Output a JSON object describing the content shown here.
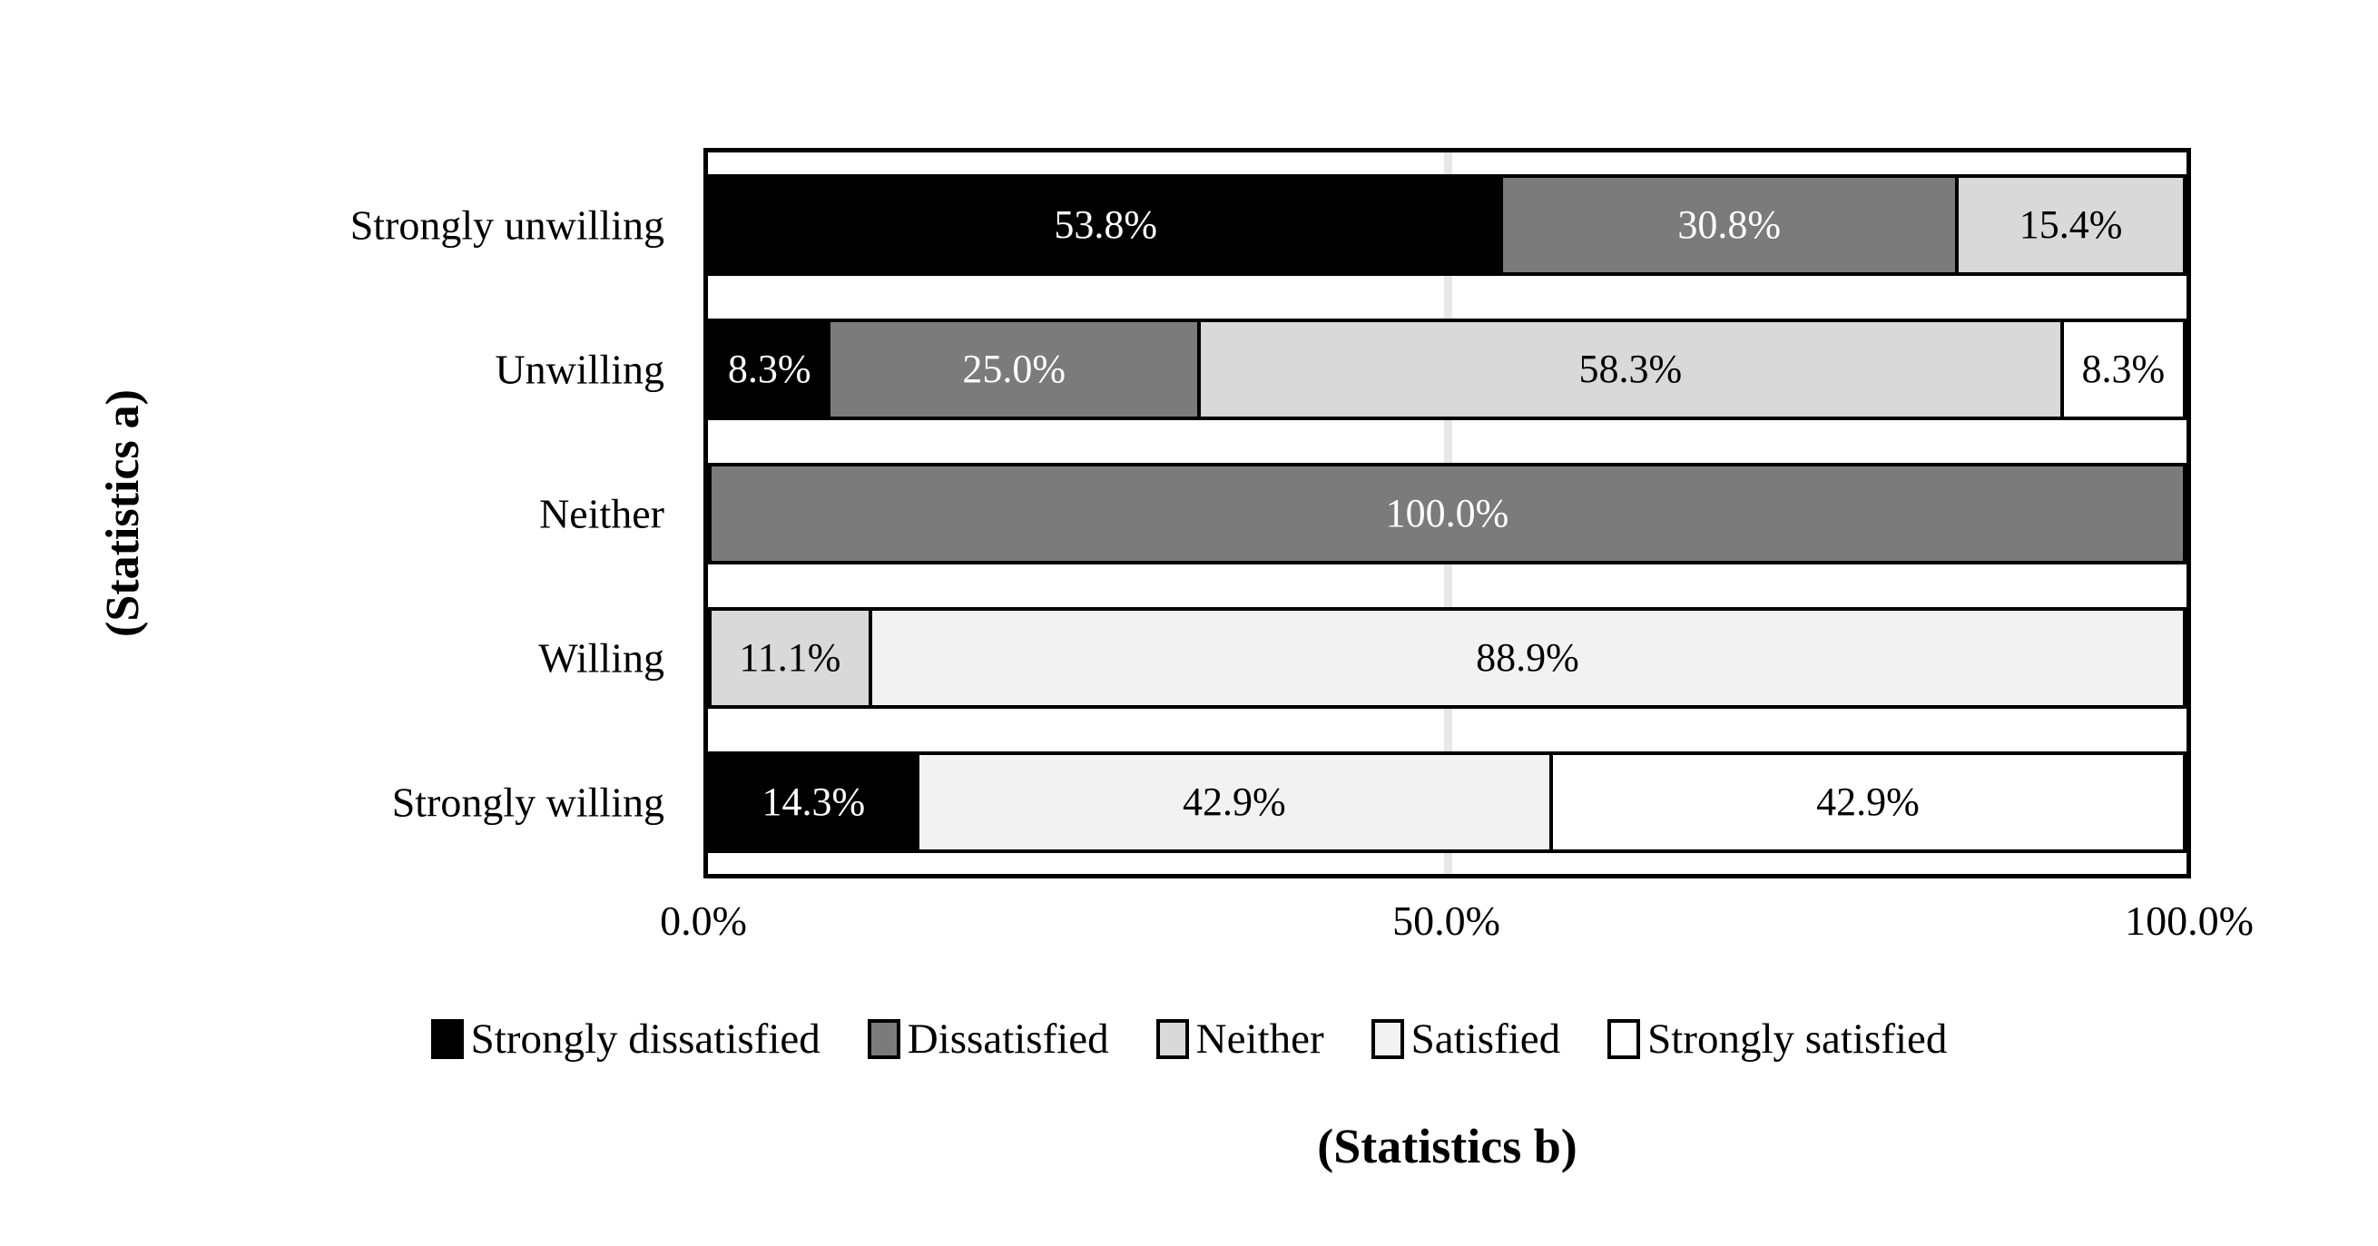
{
  "chart_data": {
    "type": "bar",
    "variant": "100pct-stacked-horizontal",
    "title": "",
    "xlabel": "(Statistics b)",
    "ylabel": "(Statistics a)",
    "categories": [
      "Strongly unwilling",
      "Unwilling",
      "Neither",
      "Willing",
      "Strongly willing"
    ],
    "series": [
      {
        "name": "Strongly dissatisfied",
        "color": "#000000",
        "label_color": "#ffffff",
        "values": [
          53.8,
          8.3,
          0,
          0,
          14.3
        ]
      },
      {
        "name": "Dissatisfied",
        "color": "#7b7b7b",
        "label_color": "#ffffff",
        "values": [
          30.8,
          25.0,
          100.0,
          0,
          0
        ]
      },
      {
        "name": "Neither",
        "color": "#d9d9d9",
        "label_color": "#000000",
        "values": [
          15.4,
          58.3,
          0,
          11.1,
          0
        ]
      },
      {
        "name": "Satisfied",
        "color": "#f2f2f2",
        "label_color": "#000000",
        "values": [
          0,
          0,
          0,
          88.9,
          42.9
        ]
      },
      {
        "name": "Strongly satisfied",
        "color": "#ffffff",
        "label_color": "#000000",
        "values": [
          0,
          8.3,
          0,
          0,
          42.9
        ]
      }
    ],
    "data_labels": [
      [
        "53.8%",
        "30.8%",
        "15.4%"
      ],
      [
        "8.3%",
        "25.0%",
        "58.3%",
        "8.3%"
      ],
      [
        "100.0%"
      ],
      [
        "11.1%",
        "88.9%"
      ],
      [
        "14.3%",
        "42.9%",
        "42.9%"
      ]
    ],
    "x_ticks": [
      "0.0%",
      "50.0%",
      "100.0%"
    ],
    "xlim": [
      0,
      100
    ],
    "gridline_at": 50,
    "gridline_color": "#e7e7e7",
    "legend_position": "bottom",
    "plot_border_color": "#000000",
    "background_color": "#ffffff"
  }
}
